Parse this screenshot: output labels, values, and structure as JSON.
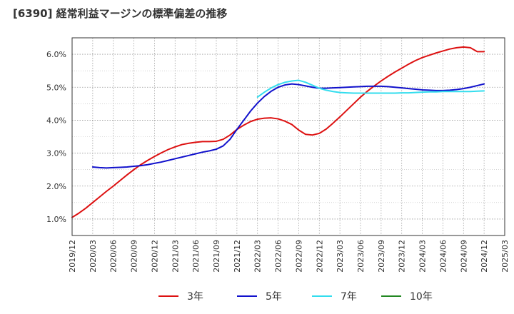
{
  "title": "[6390]  経常利益マージンの標準偏差の推移",
  "colors": {
    "3年": "#dd1111",
    "5年": "#1111cc",
    "7年": "#33ddee",
    "10年": "#228822",
    "grid": "#999999",
    "axis": "#333333"
  },
  "chart_data": {
    "type": "line",
    "title": "[6390]  経常利益マージンの標準偏差の推移",
    "xlabel": "",
    "ylabel": "",
    "x_tick_labels": [
      "2019/12",
      "2020/03",
      "2020/06",
      "2020/09",
      "2020/12",
      "2021/03",
      "2021/06",
      "2021/09",
      "2021/12",
      "2022/03",
      "2022/06",
      "2022/09",
      "2022/12",
      "2023/03",
      "2023/06",
      "2023/09",
      "2023/12",
      "2024/03",
      "2024/06",
      "2024/09",
      "2024/12",
      "2025/03"
    ],
    "y_tick_labels": [
      "1.0%",
      "2.0%",
      "3.0%",
      "4.0%",
      "5.0%",
      "6.0%"
    ],
    "ylim": [
      0.5,
      6.5
    ],
    "grid": true,
    "legend_position": "bottom",
    "series": [
      {
        "name": "3年",
        "x": [
          "2019/12",
          "2020/01",
          "2020/02",
          "2020/03",
          "2020/04",
          "2020/05",
          "2020/06",
          "2020/07",
          "2020/08",
          "2020/09",
          "2020/10",
          "2020/11",
          "2020/12",
          "2021/01",
          "2021/02",
          "2021/03",
          "2021/04",
          "2021/05",
          "2021/06",
          "2021/07",
          "2021/08",
          "2021/09",
          "2021/10",
          "2021/11",
          "2021/12",
          "2022/01",
          "2022/02",
          "2022/03",
          "2022/04",
          "2022/05",
          "2022/06",
          "2022/07",
          "2022/08",
          "2022/09",
          "2022/10",
          "2022/11",
          "2022/12",
          "2023/01",
          "2023/02",
          "2023/03",
          "2023/04",
          "2023/05",
          "2023/06",
          "2023/07",
          "2023/08",
          "2023/09",
          "2023/10",
          "2023/11",
          "2023/12",
          "2024/01",
          "2024/02",
          "2024/03",
          "2024/04",
          "2024/05",
          "2024/06",
          "2024/07",
          "2024/08",
          "2024/09",
          "2024/10",
          "2024/11",
          "2024/12"
        ],
        "values": [
          1.05,
          1.18,
          1.33,
          1.5,
          1.67,
          1.84,
          2.0,
          2.17,
          2.34,
          2.5,
          2.65,
          2.78,
          2.9,
          3.01,
          3.11,
          3.19,
          3.26,
          3.3,
          3.33,
          3.35,
          3.35,
          3.36,
          3.42,
          3.55,
          3.72,
          3.85,
          3.96,
          4.03,
          4.06,
          4.07,
          4.04,
          3.97,
          3.87,
          3.7,
          3.57,
          3.55,
          3.6,
          3.73,
          3.91,
          4.1,
          4.3,
          4.5,
          4.7,
          4.88,
          5.04,
          5.19,
          5.33,
          5.46,
          5.58,
          5.7,
          5.81,
          5.9,
          5.97,
          6.04,
          6.1,
          6.16,
          6.2,
          6.22,
          6.2,
          6.08,
          6.08
        ]
      },
      {
        "name": "5年",
        "x": [
          "2020/03",
          "2020/04",
          "2020/05",
          "2020/06",
          "2020/07",
          "2020/08",
          "2020/09",
          "2020/10",
          "2020/11",
          "2020/12",
          "2021/01",
          "2021/02",
          "2021/03",
          "2021/04",
          "2021/05",
          "2021/06",
          "2021/07",
          "2021/08",
          "2021/09",
          "2021/10",
          "2021/11",
          "2021/12",
          "2022/01",
          "2022/02",
          "2022/03",
          "2022/04",
          "2022/05",
          "2022/06",
          "2022/07",
          "2022/08",
          "2022/09",
          "2022/10",
          "2022/11",
          "2022/12",
          "2023/01",
          "2023/02",
          "2023/03",
          "2023/04",
          "2023/05",
          "2023/06",
          "2023/07",
          "2023/08",
          "2023/09",
          "2023/10",
          "2023/11",
          "2023/12",
          "2024/01",
          "2024/02",
          "2024/03",
          "2024/04",
          "2024/05",
          "2024/06",
          "2024/07",
          "2024/08",
          "2024/09",
          "2024/10",
          "2024/11",
          "2024/12"
        ],
        "values": [
          2.58,
          2.56,
          2.55,
          2.56,
          2.57,
          2.58,
          2.6,
          2.62,
          2.65,
          2.69,
          2.73,
          2.78,
          2.83,
          2.88,
          2.93,
          2.98,
          3.03,
          3.07,
          3.12,
          3.22,
          3.42,
          3.72,
          4.0,
          4.28,
          4.52,
          4.72,
          4.88,
          5.0,
          5.07,
          5.1,
          5.08,
          5.04,
          5.0,
          4.97,
          4.97,
          4.98,
          4.99,
          5.0,
          5.01,
          5.02,
          5.03,
          5.03,
          5.03,
          5.02,
          5.0,
          4.98,
          4.96,
          4.94,
          4.92,
          4.91,
          4.9,
          4.9,
          4.91,
          4.93,
          4.96,
          5.0,
          5.05,
          5.1
        ]
      },
      {
        "name": "7年",
        "x": [
          "2022/03",
          "2022/04",
          "2022/05",
          "2022/06",
          "2022/07",
          "2022/08",
          "2022/09",
          "2022/10",
          "2022/11",
          "2022/12",
          "2023/01",
          "2023/02",
          "2023/03",
          "2023/04",
          "2023/05",
          "2023/06",
          "2023/07",
          "2023/08",
          "2023/09",
          "2023/10",
          "2023/11",
          "2023/12",
          "2024/01",
          "2024/02",
          "2024/03",
          "2024/04",
          "2024/05",
          "2024/06",
          "2024/07",
          "2024/08",
          "2024/09",
          "2024/10",
          "2024/11",
          "2024/12"
        ],
        "values": [
          4.7,
          4.85,
          4.98,
          5.08,
          5.15,
          5.19,
          5.21,
          5.15,
          5.06,
          4.97,
          4.91,
          4.87,
          4.84,
          4.83,
          4.82,
          4.82,
          4.82,
          4.82,
          4.82,
          4.82,
          4.82,
          4.83,
          4.83,
          4.84,
          4.85,
          4.86,
          4.86,
          4.87,
          4.87,
          4.87,
          4.87,
          4.87,
          4.88,
          4.89
        ]
      },
      {
        "name": "10年",
        "x": [],
        "values": []
      }
    ]
  }
}
